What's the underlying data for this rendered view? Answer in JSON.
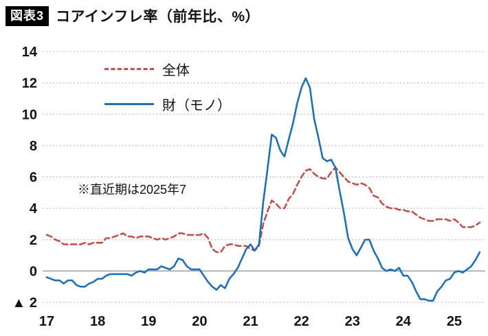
{
  "header": {
    "badge": "図表3",
    "title": "コアインフレ率（前年比、%）"
  },
  "chart_data": {
    "type": "line",
    "title": "コアインフレ率（前年比、%）",
    "annotation": "※直近期は2025年7",
    "x_unit": "month",
    "x_range": [
      "2017-01",
      "2025-07"
    ],
    "x_labels": [
      "17",
      "18",
      "19",
      "20",
      "21",
      "22",
      "23",
      "24",
      "25"
    ],
    "ylim": [
      -2,
      14
    ],
    "ytick_step": 2,
    "ytick_labels": [
      "▲ 2",
      "0",
      "2",
      "4",
      "6",
      "8",
      "10",
      "12",
      "14"
    ],
    "grid": true,
    "legend_position": "top-left-inside",
    "colors": {
      "grid": "#b5b5b5",
      "zero_line": "#9e9e9e",
      "text": "#111111"
    },
    "series": [
      {
        "name": "全体",
        "color": "#c0504d",
        "style": "dashed",
        "values": [
          2.3,
          2.2,
          2.0,
          1.9,
          1.7,
          1.7,
          1.7,
          1.7,
          1.7,
          1.8,
          1.7,
          1.8,
          1.8,
          1.8,
          2.1,
          2.1,
          2.2,
          2.3,
          2.4,
          2.2,
          2.2,
          2.1,
          2.2,
          2.2,
          2.2,
          2.1,
          2.0,
          2.1,
          2.0,
          2.1,
          2.2,
          2.4,
          2.4,
          2.3,
          2.3,
          2.3,
          2.3,
          2.4,
          2.1,
          1.4,
          1.2,
          1.2,
          1.6,
          1.7,
          1.7,
          1.6,
          1.6,
          1.6,
          1.4,
          1.3,
          1.6,
          3.0,
          3.8,
          4.5,
          4.3,
          4.0,
          4.0,
          4.6,
          4.9,
          5.5,
          6.0,
          6.4,
          6.5,
          6.2,
          6.0,
          5.9,
          5.9,
          6.3,
          6.6,
          6.3,
          6.0,
          5.7,
          5.6,
          5.5,
          5.6,
          5.5,
          5.3,
          4.8,
          4.7,
          4.3,
          4.1,
          4.0,
          4.0,
          3.9,
          3.9,
          3.8,
          3.8,
          3.6,
          3.4,
          3.3,
          3.2,
          3.2,
          3.3,
          3.3,
          3.3,
          3.2,
          3.3,
          3.1,
          2.8,
          2.8,
          2.8,
          2.9,
          3.1
        ]
      },
      {
        "name": "財（モノ）",
        "color": "#1f6fb5",
        "style": "solid",
        "values": [
          -0.4,
          -0.5,
          -0.6,
          -0.6,
          -0.8,
          -0.6,
          -0.6,
          -0.9,
          -1.0,
          -1.0,
          -0.8,
          -0.7,
          -0.5,
          -0.5,
          -0.3,
          -0.2,
          -0.2,
          -0.2,
          -0.2,
          -0.2,
          -0.3,
          -0.1,
          0.0,
          -0.1,
          0.1,
          0.1,
          0.1,
          0.3,
          0.2,
          0.1,
          0.3,
          0.8,
          0.7,
          0.3,
          0.1,
          0.1,
          0.1,
          -0.3,
          -0.7,
          -1.0,
          -1.2,
          -0.9,
          -1.1,
          -0.5,
          -0.2,
          0.2,
          0.8,
          1.4,
          1.7,
          1.3,
          1.7,
          4.4,
          6.5,
          8.7,
          8.5,
          7.7,
          7.3,
          8.4,
          9.4,
          10.7,
          11.7,
          12.3,
          11.7,
          9.7,
          8.5,
          7.2,
          7.0,
          7.1,
          6.6,
          5.1,
          3.7,
          2.1,
          1.4,
          1.0,
          1.5,
          2.0,
          2.0,
          1.3,
          0.8,
          0.2,
          0.0,
          0.1,
          0.0,
          0.2,
          -0.3,
          -0.3,
          -0.7,
          -1.3,
          -1.8,
          -1.8,
          -1.9,
          -1.9,
          -1.3,
          -1.0,
          -0.6,
          -0.5,
          -0.1,
          0.0,
          -0.1,
          0.1,
          0.3,
          0.7,
          1.2
        ]
      }
    ]
  }
}
